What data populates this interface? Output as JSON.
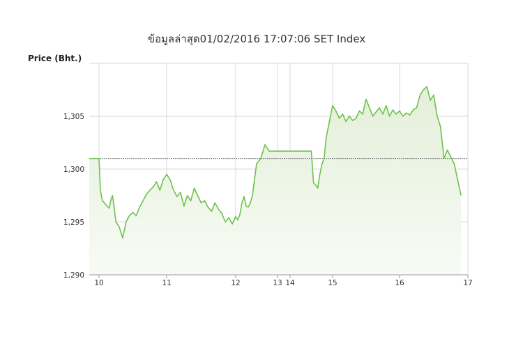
{
  "chart_data": {
    "type": "area",
    "title": "ข้อมูลล่าสุด01/02/2016 17:07:06   SET Index",
    "ylabel": "Price (Bht.)",
    "xlabel": "",
    "ylim": [
      1290,
      1310
    ],
    "yticks": [
      1290,
      1295,
      1300,
      1305
    ],
    "ytick_labels": [
      "1,290",
      "1,295",
      "1,300",
      "1,305"
    ],
    "xticks": [
      10,
      11,
      12,
      13,
      14,
      15,
      16,
      17
    ],
    "xtick_labels": [
      "10",
      "11",
      "12",
      "13",
      "14",
      "15",
      "16",
      "17"
    ],
    "reference_line": 1301.0,
    "grid": true,
    "colors": {
      "line": "#6cc24a",
      "fill_top": "#e3efd9",
      "fill_bottom": "#f8fbf5",
      "reference": "#555555"
    },
    "series": [
      {
        "x": [
          9.85,
          10.0,
          10.02,
          10.05,
          10.08,
          10.12,
          10.15,
          10.18,
          10.2,
          10.25,
          10.3,
          10.35,
          10.4,
          10.45,
          10.5,
          10.55,
          10.6,
          10.65,
          10.7,
          10.75,
          10.8,
          10.85,
          10.9,
          10.95,
          11.0,
          11.05,
          11.1,
          11.15,
          11.2,
          11.25,
          11.3,
          11.35,
          11.4,
          11.45,
          11.5,
          11.55,
          11.6,
          11.65,
          11.7,
          11.75,
          11.8,
          11.85,
          11.9,
          11.95,
          12.0,
          12.05,
          12.1,
          12.15,
          12.2,
          12.25,
          12.3,
          12.35,
          12.4,
          12.45,
          12.5,
          12.6,
          12.7,
          12.8,
          12.9,
          13.0,
          13.1,
          13.2,
          13.3,
          13.4,
          13.5,
          13.6,
          13.7,
          13.8,
          13.9,
          14.0,
          14.1,
          14.2,
          14.3,
          14.4,
          14.5,
          14.55,
          14.6,
          14.65,
          14.7,
          14.75,
          14.8,
          14.85,
          14.9,
          14.95,
          15.0,
          15.05,
          15.1,
          15.15,
          15.2,
          15.25,
          15.3,
          15.35,
          15.4,
          15.45,
          15.5,
          15.55,
          15.6,
          15.65,
          15.7,
          15.75,
          15.8,
          15.85,
          15.9,
          15.95,
          16.0,
          16.05,
          16.1,
          16.15,
          16.2,
          16.25,
          16.3,
          16.35,
          16.4,
          16.45,
          16.5,
          16.55,
          16.6,
          16.65,
          16.7,
          16.8,
          16.9
        ],
        "y": [
          1301.0,
          1301.0,
          1298.0,
          1297.0,
          1296.8,
          1296.5,
          1296.3,
          1297.2,
          1297.5,
          1295.0,
          1294.5,
          1293.5,
          1295.0,
          1295.6,
          1295.9,
          1295.6,
          1296.4,
          1297.0,
          1297.6,
          1298.0,
          1298.3,
          1298.8,
          1298.0,
          1299.0,
          1299.5,
          1299.0,
          1298.0,
          1297.4,
          1297.8,
          1296.5,
          1297.5,
          1297.0,
          1298.2,
          1297.5,
          1296.8,
          1297.0,
          1296.4,
          1296.0,
          1296.8,
          1296.2,
          1295.8,
          1295.0,
          1295.4,
          1294.8,
          1295.5,
          1295.2,
          1295.7,
          1296.8,
          1297.4,
          1296.5,
          1296.4,
          1296.8,
          1297.5,
          1299.0,
          1300.5,
          1301.0,
          1302.3,
          1301.7,
          1301.7,
          1301.7,
          1301.7,
          1301.7,
          1301.7,
          1301.7,
          1301.7,
          1301.7,
          1301.7,
          1301.7,
          1301.7,
          1301.7,
          1301.7,
          1301.7,
          1301.7,
          1301.7,
          1301.7,
          1298.7,
          1298.5,
          1298.2,
          1299.5,
          1300.5,
          1301.0,
          1303.0,
          1304.0,
          1305.0,
          1306.0,
          1305.5,
          1304.8,
          1305.2,
          1304.5,
          1305.0,
          1304.6,
          1304.8,
          1305.5,
          1305.2,
          1306.6,
          1305.8,
          1305.0,
          1305.4,
          1305.8,
          1305.2,
          1306.0,
          1305.0,
          1305.6,
          1305.2,
          1305.5,
          1305.0,
          1305.3,
          1305.1,
          1305.6,
          1305.8,
          1307.0,
          1307.5,
          1307.8,
          1306.5,
          1307.0,
          1305.0,
          1304.0,
          1301.0,
          1301.8,
          1300.5,
          1297.5
        ]
      }
    ]
  }
}
